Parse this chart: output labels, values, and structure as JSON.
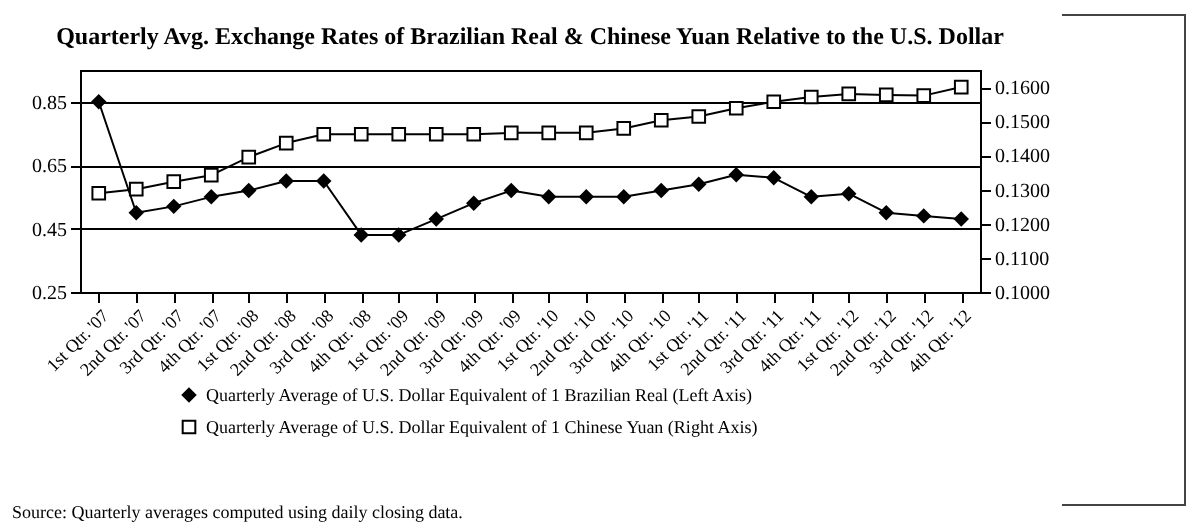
{
  "chart_data": {
    "type": "line",
    "title": "Quarterly  Avg. Exchange Rates of Brazilian  Real & Chinese Yuan  Relative to the U.S. Dollar",
    "categories": [
      "1st Qtr. '07",
      "2nd Qtr. '07",
      "3rd Qtr. '07",
      "4th Qtr. '07",
      "1st Qtr. '08",
      "2nd Qtr. '08",
      "3rd Qtr. '08",
      "4th Qtr. '08",
      "1st Qtr. '09",
      "2nd Qtr. '09",
      "3rd Qtr. '09",
      "4th Qtr. '09",
      "1st Qtr. '10",
      "2nd Qtr. '10",
      "3rd Qtr. '10",
      "4th Qtr. '10",
      "1st Qtr. '11",
      "2nd Qtr. '11",
      "3rd Qtr. '11",
      "4th Qtr. '11",
      "1st Qtr. '12",
      "2nd Qtr. '12",
      "3rd Qtr. '12",
      "4th Qtr. '12"
    ],
    "series": [
      {
        "name": "Quarterly Average of U.S. Dollar Equivalent of 1 Brazilian Real (Left Axis)",
        "color": "#000000",
        "marker": "diamond",
        "values": [
          0.85,
          0.5,
          0.52,
          0.55,
          0.57,
          0.6,
          0.6,
          0.43,
          0.43,
          0.48,
          0.53,
          0.57,
          0.55,
          0.55,
          0.55,
          0.57,
          0.59,
          0.62,
          0.61,
          0.55,
          0.56,
          0.5,
          0.49,
          0.48
        ]
      },
      {
        "name": "Quarterly Average of U.S. Dollar Equivalent of 1 Chinese Yuan (Right Axis)",
        "color": "#000000",
        "marker": "square",
        "axis": "y2",
        "values": [
          0.1289,
          0.1301,
          0.1323,
          0.1342,
          0.1395,
          0.1436,
          0.1462,
          0.1462,
          0.1462,
          0.1462,
          0.1462,
          0.1466,
          0.1466,
          0.1466,
          0.1479,
          0.1503,
          0.1514,
          0.1538,
          0.1557,
          0.1571,
          0.158,
          0.1577,
          0.1575,
          0.16
        ]
      }
    ],
    "ylim": [
      0.25,
      0.95
    ],
    "yticks": [
      0.25,
      0.45,
      0.65,
      0.85
    ],
    "y2lim": [
      0.1,
      0.165
    ],
    "y2ticks": [
      {
        "value": 0.1,
        "label": "0.1000"
      },
      {
        "value": 0.11,
        "label": "0.1100"
      },
      {
        "value": 0.12,
        "label": "0.1200"
      },
      {
        "value": 0.13,
        "label": "0.1300"
      },
      {
        "value": 0.14,
        "label": "0.1400"
      },
      {
        "value": 0.15,
        "label": "0.1500"
      },
      {
        "value": 0.16,
        "label": "0.1600"
      }
    ],
    "grid": "y",
    "legend": "bottom",
    "line_style": "solid",
    "annotations": [
      "Source:  Quarterly averages computed using daily closing data."
    ]
  }
}
